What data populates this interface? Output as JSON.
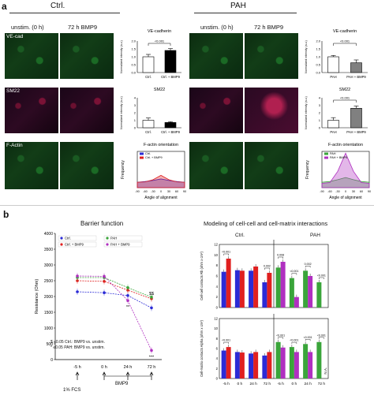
{
  "panel_a": {
    "letter": "a",
    "group_ctrl": "Ctrl.",
    "group_pah": "PAH",
    "col_unstim": "unstim. (0 h)",
    "col_bmp9": "72 h BMP9",
    "col_unstim_pah": "unstim. (0 h)",
    "col_bmp9_pah": "72 h BMP9",
    "row_vecad": "VE-cad",
    "row_sm22": "SM22",
    "row_factin": "F-Actin"
  },
  "panel_b": {
    "letter": "b",
    "barrier_title": "Barrier function",
    "modeling_title": "Modeling of cell-cell and cell-matrix interactions",
    "ctrl_label": "Ctrl.",
    "pah_label": "PAH",
    "footnote1": "$ ≤0.05 Ctrl.: BMP9 vs. unstim.",
    "footnote2": "* ≤0.05 PAH: BMP9 vs. unstim.",
    "fcs_label": "1% FCS",
    "bmp9_label": "BMP9",
    "na_label": "N.A."
  },
  "chart_data": [
    {
      "id": "ctrl-vecad",
      "type": "bar",
      "title": "VE-cadherin",
      "ylabel": "Normalized intensity (a.u.)",
      "categories": [
        "Ctrl.",
        "Ctrl. + BMP9"
      ],
      "values": [
        1.0,
        1.4
      ],
      "errors": [
        0.15,
        0.12
      ],
      "colors": [
        "#ffffff",
        "#000000"
      ],
      "ylim": [
        0,
        2
      ],
      "yticks": [
        "0.0",
        "0.5",
        "1.0",
        "1.5",
        "2.0"
      ],
      "pvalue": "<0.001"
    },
    {
      "id": "ctrl-sm22",
      "type": "bar",
      "title": "SM22",
      "ylabel": "Normalized intensity (a.u.)",
      "categories": [
        "Ctrl.",
        "Ctrl. + BMP9"
      ],
      "values": [
        1.0,
        0.7
      ],
      "errors": [
        0.3,
        0.12
      ],
      "colors": [
        "#ffffff",
        "#000000"
      ],
      "ylim": [
        0,
        4
      ],
      "yticks": [
        "0",
        "1",
        "2",
        "3",
        "4"
      ]
    },
    {
      "id": "ctrl-factin",
      "type": "area",
      "title": "F-actin orientation",
      "xlabel": "Angle of alignment",
      "ylabel": "Frequency",
      "xlim": [
        -90,
        90
      ],
      "xticks": [
        "-90",
        "-60",
        "-30",
        "0",
        "30",
        "60",
        "90"
      ],
      "series": [
        {
          "name": "Ctrl.",
          "color": "#2b2bd6",
          "x": [
            -90,
            -60,
            -30,
            0,
            30,
            60,
            90
          ],
          "y": [
            0.15,
            0.17,
            0.2,
            0.24,
            0.2,
            0.17,
            0.15
          ]
        },
        {
          "name": "Ctrl. + BMP9",
          "color": "#e02020",
          "x": [
            -90,
            -60,
            -30,
            0,
            30,
            60,
            90
          ],
          "y": [
            0.15,
            0.16,
            0.22,
            0.34,
            0.22,
            0.16,
            0.15
          ]
        }
      ]
    },
    {
      "id": "pah-vecad",
      "type": "bar",
      "title": "VE-cadherin",
      "ylabel": "Normalized intensity (a.u.)",
      "categories": [
        "PAH",
        "PAH + BMP9"
      ],
      "values": [
        1.0,
        0.62
      ],
      "errors": [
        0.08,
        0.18
      ],
      "colors": [
        "#ffffff",
        "#808080"
      ],
      "ylim": [
        0,
        2
      ],
      "yticks": [
        "0.0",
        "0.5",
        "1.0",
        "1.5",
        "2.0"
      ],
      "pvalue": "<0.001"
    },
    {
      "id": "pah-sm22",
      "type": "bar",
      "title": "SM22",
      "ylabel": "Normalized intensity (a.u.)",
      "categories": [
        "PAH",
        "PAH + BMP9"
      ],
      "values": [
        1.0,
        2.6
      ],
      "errors": [
        0.35,
        0.3
      ],
      "colors": [
        "#ffffff",
        "#808080"
      ],
      "ylim": [
        0,
        4
      ],
      "yticks": [
        "0",
        "1",
        "2",
        "3",
        "4"
      ],
      "pvalue": "<0.001"
    },
    {
      "id": "pah-factin",
      "type": "area",
      "title": "F-actin orientation",
      "xlabel": "Angle of alignment",
      "ylabel": "Frequency",
      "xlim": [
        -90,
        90
      ],
      "xticks": [
        "-90",
        "-60",
        "-30",
        "0",
        "30",
        "60",
        "90"
      ],
      "series": [
        {
          "name": "PAH",
          "color": "#3aa53a",
          "x": [
            -90,
            -60,
            -30,
            0,
            30,
            60,
            90
          ],
          "y": [
            0.15,
            0.17,
            0.22,
            0.28,
            0.22,
            0.17,
            0.15
          ]
        },
        {
          "name": "PAH + BMP9",
          "color": "#b030c0",
          "x": [
            -90,
            -60,
            -30,
            0,
            30,
            60,
            90
          ],
          "y": [
            0.12,
            0.14,
            0.45,
            0.95,
            0.45,
            0.14,
            0.12
          ]
        }
      ]
    },
    {
      "id": "barrier-function",
      "type": "line",
      "title": "Barrier function",
      "ylabel": "Resistance (Ohm)",
      "categories": [
        "-5 h",
        "0 h",
        "24 h",
        "72 h"
      ],
      "ylim": [
        0,
        4000
      ],
      "yticks": [
        "0",
        "500",
        "1000",
        "1500",
        "2000",
        "2500",
        "3000",
        "3500",
        "4000"
      ],
      "series": [
        {
          "name": "Ctrl.",
          "color": "#2b2bd6",
          "values": [
            2150,
            2120,
            2030,
            1640
          ]
        },
        {
          "name": "Ctrl. + BMP9",
          "color": "#e02020",
          "values": [
            2500,
            2480,
            2200,
            1930
          ]
        },
        {
          "name": "PAH",
          "color": "#3aa53a",
          "values": [
            2600,
            2600,
            2280,
            1980
          ]
        },
        {
          "name": "PAH + BMP9",
          "color": "#b030c0",
          "values": [
            2650,
            2640,
            1870,
            290
          ]
        }
      ],
      "annotations": [
        "$$",
        "**",
        "***"
      ]
    },
    {
      "id": "rb-contacts",
      "type": "bar",
      "ylabel": "Cell-cell contacts Rb (ohm x cm²)",
      "categories": [
        "-5 h",
        "0 h",
        "24 h",
        "72 h",
        "-5 h",
        "0 h",
        "24 h",
        "72 h"
      ],
      "ylim": [
        0,
        12
      ],
      "yticks": [
        "0",
        "2",
        "4",
        "6",
        "8",
        "10",
        "12"
      ],
      "series": [
        {
          "name": "unstim.",
          "colors": [
            "#2b2bd6",
            "#2b2bd6",
            "#2b2bd6",
            "#2b2bd6",
            "#3aa53a",
            "#3aa53a",
            "#3aa53a",
            "#3aa53a"
          ],
          "values": [
            6.8,
            7.1,
            7.0,
            4.8,
            7.6,
            5.6,
            7.0,
            4.8
          ]
        },
        {
          "name": "BMP9",
          "colors": [
            "#e02020",
            "#e02020",
            "#e02020",
            "#e02020",
            "#b030c0",
            "#b030c0",
            "#b030c0",
            "#b030c0"
          ],
          "values": [
            9.3,
            7.0,
            7.8,
            6.6,
            8.7,
            2.0,
            6.0,
            0
          ]
        }
      ],
      "pvalues": [
        "<0.001",
        "0.002",
        "0.008",
        "<0.001",
        "0.002",
        "<0.001"
      ]
    },
    {
      "id": "alpha-contacts",
      "type": "bar",
      "ylabel": "Cell-matrix contacts Alpha (ohm x cm²)",
      "categories": [
        "-5 h",
        "0 h",
        "24 h",
        "72 h",
        "-5 h",
        "0 h",
        "24 h",
        "72 h"
      ],
      "ylim": [
        0,
        12
      ],
      "yticks": [
        "0",
        "2",
        "4",
        "6",
        "8",
        "10",
        "12"
      ],
      "series": [
        {
          "name": "unstim.",
          "colors": [
            "#2b2bd6",
            "#2b2bd6",
            "#2b2bd6",
            "#2b2bd6",
            "#3aa53a",
            "#3aa53a",
            "#3aa53a",
            "#3aa53a"
          ],
          "values": [
            5.6,
            5.3,
            5.0,
            4.6,
            7.3,
            6.3,
            6.9,
            7.3
          ]
        },
        {
          "name": "BMP9",
          "colors": [
            "#e02020",
            "#e02020",
            "#e02020",
            "#e02020",
            "#b030c0",
            "#b030c0",
            "#b030c0",
            "#b030c0"
          ],
          "values": [
            6.3,
            5.2,
            5.3,
            5.3,
            6.2,
            5.3,
            5.3,
            0
          ]
        }
      ],
      "pvalues": [
        "<0.001",
        "<0.001",
        "<0.001",
        "<0.001",
        "<0.001"
      ]
    }
  ]
}
